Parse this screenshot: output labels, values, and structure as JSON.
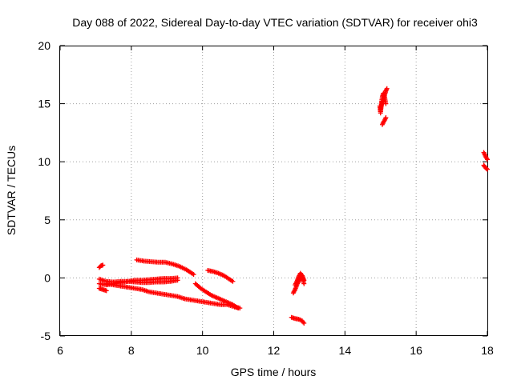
{
  "chart_data": {
    "type": "scatter",
    "title": "Day 088 of 2022, Sidereal Day-to-day VTEC variation (SDTVAR) for receiver ohi3",
    "xlabel": "GPS time / hours",
    "ylabel": "SDTVAR / TECUs",
    "xlim": [
      6,
      18
    ],
    "ylim": [
      -5,
      20
    ],
    "xticks": [
      6,
      8,
      10,
      12,
      14,
      16,
      18
    ],
    "yticks": [
      -5,
      0,
      5,
      10,
      15,
      20
    ],
    "grid": true,
    "marker": "plus",
    "series": [
      {
        "name": "SDTVAR",
        "color": "#ff0000",
        "segments": [
          {
            "x": [
              7.1,
              7.15,
              7.2
            ],
            "y": [
              0.9,
              1.05,
              1.1
            ]
          },
          {
            "x": [
              7.1,
              7.3,
              7.5,
              7.7,
              7.9,
              8.1,
              8.3,
              8.5,
              8.7,
              8.9,
              9.1,
              9.3
            ],
            "y": [
              -0.5,
              -0.6,
              -0.5,
              -0.4,
              -0.3,
              -0.2,
              -0.2,
              -0.15,
              -0.1,
              -0.05,
              -0.05,
              0.0
            ]
          },
          {
            "x": [
              7.1,
              7.3,
              7.5,
              7.7,
              7.9,
              8.1,
              8.3,
              8.5,
              8.7,
              8.9,
              9.1,
              9.3
            ],
            "y": [
              -0.1,
              -0.3,
              -0.35,
              -0.3,
              -0.3,
              -0.35,
              -0.4,
              -0.4,
              -0.35,
              -0.35,
              -0.3,
              -0.2
            ]
          },
          {
            "x": [
              7.1,
              7.2,
              7.3
            ],
            "y": [
              -0.9,
              -1.0,
              -1.1
            ]
          },
          {
            "x": [
              7.3,
              7.5,
              7.7,
              7.9,
              8.1,
              8.3,
              8.5,
              8.7,
              8.9,
              9.1,
              9.3,
              9.5,
              9.7,
              9.9,
              10.1,
              10.3,
              10.5,
              10.7,
              10.9,
              11.05
            ],
            "y": [
              -0.5,
              -0.6,
              -0.7,
              -0.8,
              -0.9,
              -1.0,
              -1.2,
              -1.3,
              -1.4,
              -1.5,
              -1.6,
              -1.8,
              -1.9,
              -2.0,
              -2.1,
              -2.2,
              -2.3,
              -2.3,
              -2.5,
              -2.6
            ]
          },
          {
            "x": [
              8.15,
              8.35,
              8.55,
              8.75,
              8.95,
              9.15,
              9.35,
              9.55,
              9.75
            ],
            "y": [
              1.55,
              1.45,
              1.4,
              1.35,
              1.35,
              1.2,
              1.0,
              0.7,
              0.3
            ]
          },
          {
            "x": [
              9.8,
              9.95,
              10.1,
              10.25,
              10.4,
              10.55,
              10.7,
              10.85,
              11.0
            ],
            "y": [
              -0.5,
              -0.9,
              -1.2,
              -1.5,
              -1.7,
              -1.9,
              -2.1,
              -2.3,
              -2.6
            ]
          },
          {
            "x": [
              10.15,
              10.3,
              10.45,
              10.6,
              10.75,
              10.85
            ],
            "y": [
              0.65,
              0.55,
              0.4,
              0.2,
              -0.1,
              -0.3
            ]
          },
          {
            "x": [
              12.55,
              12.6,
              12.65,
              12.7,
              12.75,
              12.8,
              12.85
            ],
            "y": [
              -1.3,
              -1.0,
              -0.6,
              -0.3,
              0.0,
              0.2,
              -0.5
            ]
          },
          {
            "x": [
              12.6,
              12.65,
              12.7,
              12.75,
              12.8,
              12.85
            ],
            "y": [
              -0.6,
              -0.3,
              0.1,
              0.4,
              0.2,
              -0.2
            ]
          },
          {
            "x": [
              12.5,
              12.6,
              12.7,
              12.8,
              12.85
            ],
            "y": [
              -3.4,
              -3.5,
              -3.55,
              -3.7,
              -3.9
            ]
          },
          {
            "x": [
              15.0,
              15.03,
              15.05,
              15.08,
              15.1,
              15.12,
              15.15,
              15.18
            ],
            "y": [
              14.5,
              14.9,
              15.1,
              15.3,
              15.6,
              15.8,
              16.1,
              16.3
            ]
          },
          {
            "x": [
              14.98,
              15.0,
              15.03,
              15.05,
              15.08,
              15.12,
              15.15
            ],
            "y": [
              14.8,
              14.2,
              15.2,
              15.6,
              15.9,
              15.5,
              15.0
            ]
          },
          {
            "x": [
              15.05,
              15.08,
              15.12,
              15.15
            ],
            "y": [
              13.2,
              13.4,
              13.6,
              13.8
            ]
          },
          {
            "x": [
              17.9,
              17.93,
              17.96,
              18.0
            ],
            "y": [
              10.8,
              10.6,
              10.4,
              10.2
            ]
          },
          {
            "x": [
              17.9,
              17.93,
              17.96,
              18.0
            ],
            "y": [
              9.7,
              9.55,
              9.45,
              9.35
            ]
          }
        ]
      }
    ]
  }
}
